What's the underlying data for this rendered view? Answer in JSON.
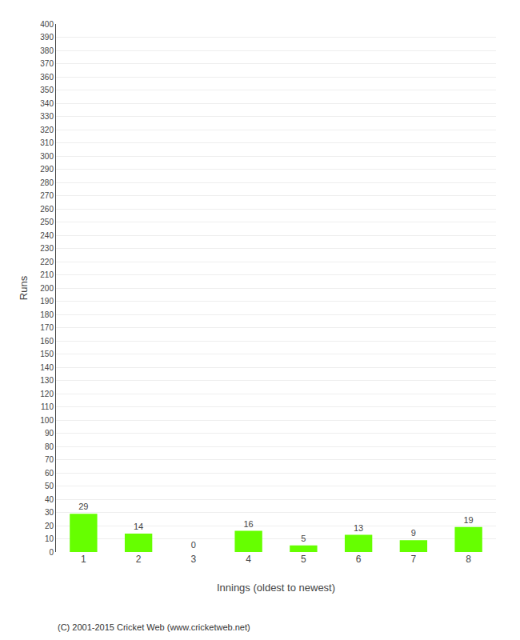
{
  "chart_data": {
    "type": "bar",
    "categories": [
      1,
      2,
      3,
      4,
      5,
      6,
      7,
      8
    ],
    "values": [
      29,
      14,
      0,
      16,
      5,
      13,
      9,
      19
    ],
    "color": "#66ff00",
    "xlabel": "Innings (oldest to newest)",
    "ylabel": "Runs",
    "ylim": [
      0,
      400
    ],
    "yticks": [
      0,
      10,
      20,
      30,
      40,
      50,
      60,
      70,
      80,
      90,
      100,
      110,
      120,
      130,
      140,
      150,
      160,
      170,
      180,
      190,
      200,
      210,
      220,
      230,
      240,
      250,
      260,
      270,
      280,
      290,
      300,
      310,
      320,
      330,
      340,
      350,
      360,
      370,
      380,
      390,
      400
    ],
    "grid": true,
    "data_labels": true,
    "annotations": [
      "(C) 2001-2015 Cricket Web (www.cricketweb.net)"
    ]
  }
}
